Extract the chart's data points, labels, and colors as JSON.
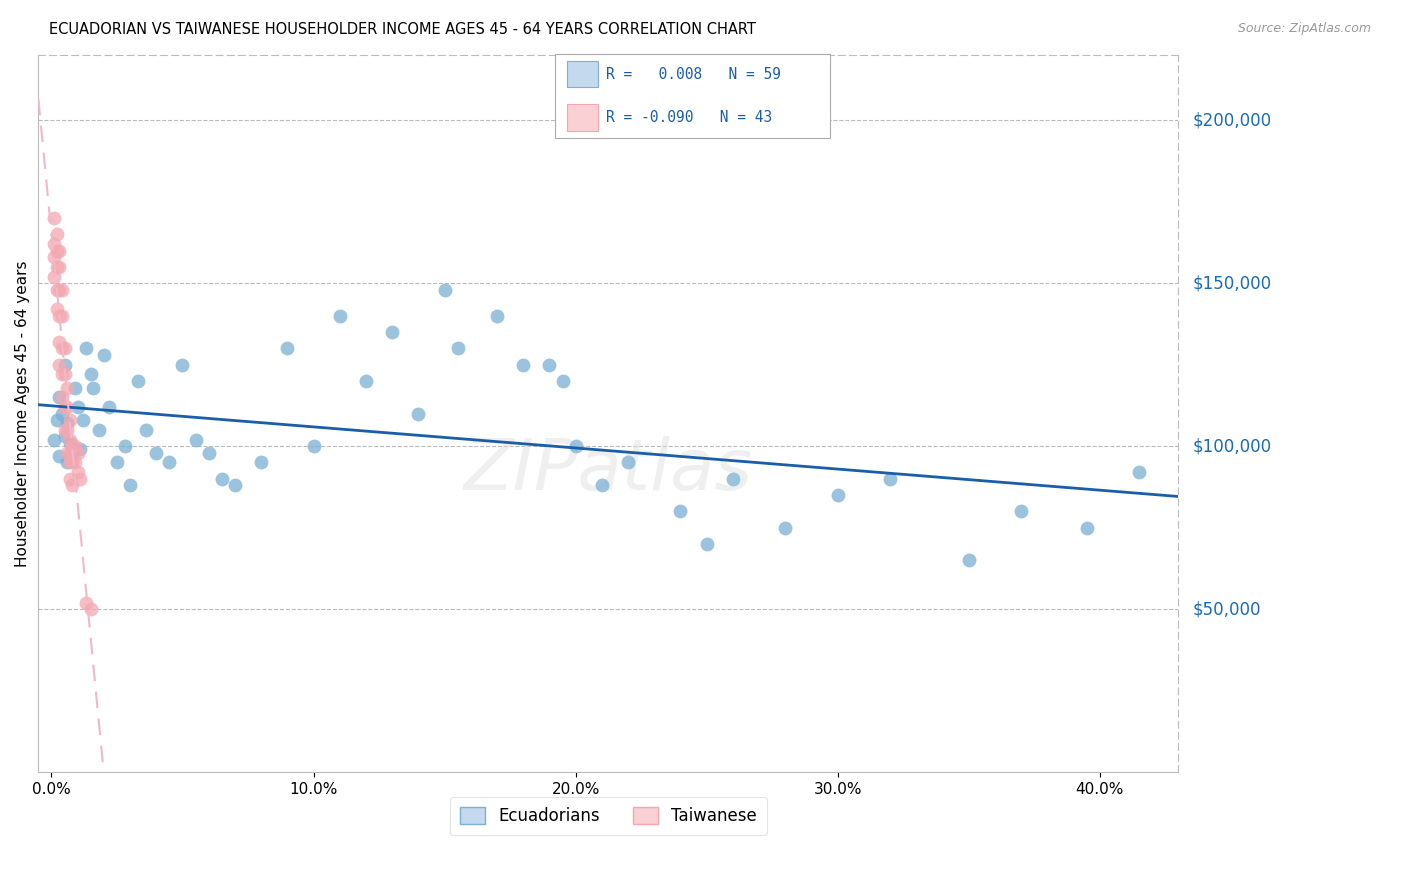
{
  "title": "ECUADORIAN VS TAIWANESE HOUSEHOLDER INCOME AGES 45 - 64 YEARS CORRELATION CHART",
  "source": "Source: ZipAtlas.com",
  "ylabel": "Householder Income Ages 45 - 64 years",
  "xlabel_ticks": [
    "0.0%",
    "10.0%",
    "20.0%",
    "30.0%",
    "40.0%"
  ],
  "xlabel_tick_vals": [
    0.0,
    0.1,
    0.2,
    0.3,
    0.4
  ],
  "ytick_labels": [
    "$50,000",
    "$100,000",
    "$150,000",
    "$200,000"
  ],
  "ytick_vals": [
    50000,
    100000,
    150000,
    200000
  ],
  "ylim": [
    0,
    220000
  ],
  "xlim": [
    -0.005,
    0.43
  ],
  "blue_color": "#7BAFD4",
  "pink_color": "#F4A7B0",
  "blue_fill": "#C5D9EE",
  "pink_fill": "#FAD0D5",
  "trend_blue": "#1A5EA8",
  "trend_pink_dashed": "#F0B8C8",
  "watermark_color": "#DDDDDD",
  "ecuadorian_x": [
    0.001,
    0.002,
    0.003,
    0.003,
    0.004,
    0.005,
    0.005,
    0.006,
    0.006,
    0.007,
    0.008,
    0.009,
    0.01,
    0.011,
    0.012,
    0.013,
    0.015,
    0.016,
    0.018,
    0.02,
    0.022,
    0.025,
    0.028,
    0.03,
    0.033,
    0.036,
    0.04,
    0.045,
    0.05,
    0.055,
    0.06,
    0.065,
    0.07,
    0.08,
    0.09,
    0.1,
    0.11,
    0.12,
    0.13,
    0.14,
    0.15,
    0.155,
    0.17,
    0.18,
    0.19,
    0.195,
    0.2,
    0.21,
    0.22,
    0.24,
    0.25,
    0.26,
    0.28,
    0.3,
    0.32,
    0.35,
    0.37,
    0.395,
    0.415
  ],
  "ecuadorian_y": [
    102000,
    108000,
    97000,
    115000,
    110000,
    103000,
    125000,
    107000,
    95000,
    101000,
    98000,
    118000,
    112000,
    99000,
    108000,
    130000,
    122000,
    118000,
    105000,
    128000,
    112000,
    95000,
    100000,
    88000,
    120000,
    105000,
    98000,
    95000,
    125000,
    102000,
    98000,
    90000,
    88000,
    95000,
    130000,
    100000,
    140000,
    120000,
    135000,
    110000,
    148000,
    130000,
    140000,
    125000,
    125000,
    120000,
    100000,
    88000,
    95000,
    80000,
    70000,
    90000,
    75000,
    85000,
    90000,
    65000,
    80000,
    75000,
    92000
  ],
  "taiwanese_x": [
    0.001,
    0.001,
    0.001,
    0.001,
    0.002,
    0.002,
    0.002,
    0.002,
    0.002,
    0.003,
    0.003,
    0.003,
    0.003,
    0.003,
    0.003,
    0.004,
    0.004,
    0.004,
    0.004,
    0.004,
    0.005,
    0.005,
    0.005,
    0.005,
    0.006,
    0.006,
    0.006,
    0.006,
    0.007,
    0.007,
    0.007,
    0.007,
    0.007,
    0.008,
    0.008,
    0.008,
    0.009,
    0.009,
    0.01,
    0.01,
    0.011,
    0.013,
    0.015
  ],
  "taiwanese_y": [
    170000,
    162000,
    158000,
    152000,
    165000,
    160000,
    155000,
    148000,
    142000,
    160000,
    155000,
    148000,
    140000,
    132000,
    125000,
    148000,
    140000,
    130000,
    122000,
    115000,
    130000,
    122000,
    112000,
    105000,
    118000,
    112000,
    105000,
    98000,
    108000,
    102000,
    98000,
    95000,
    90000,
    100000,
    95000,
    88000,
    100000,
    95000,
    98000,
    92000,
    90000,
    52000,
    50000
  ]
}
